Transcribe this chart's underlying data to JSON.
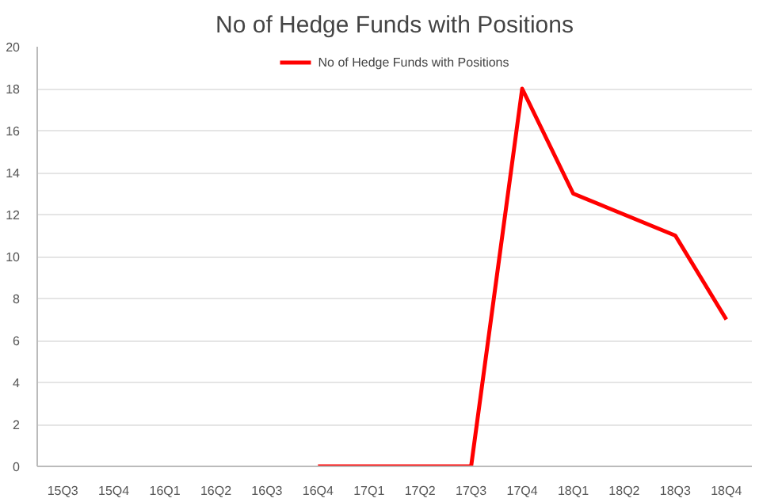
{
  "chart_data": {
    "type": "line",
    "title": "No of Hedge Funds with Positions",
    "categories": [
      "15Q3",
      "15Q4",
      "16Q1",
      "16Q2",
      "16Q3",
      "16Q4",
      "17Q1",
      "17Q2",
      "17Q3",
      "17Q4",
      "18Q1",
      "18Q2",
      "18Q3",
      "18Q4"
    ],
    "series": [
      {
        "name": "No of Hedge Funds with Positions",
        "color": "#ff0000",
        "values": [
          null,
          null,
          null,
          null,
          null,
          0,
          0,
          0,
          0,
          18,
          13,
          12,
          11,
          7
        ]
      }
    ],
    "ylim": [
      0,
      20
    ],
    "yticks": [
      0,
      2,
      4,
      6,
      8,
      10,
      12,
      14,
      16,
      18,
      20
    ],
    "grid": "y",
    "legend": "top",
    "marker": "none",
    "line_style": "solid"
  }
}
